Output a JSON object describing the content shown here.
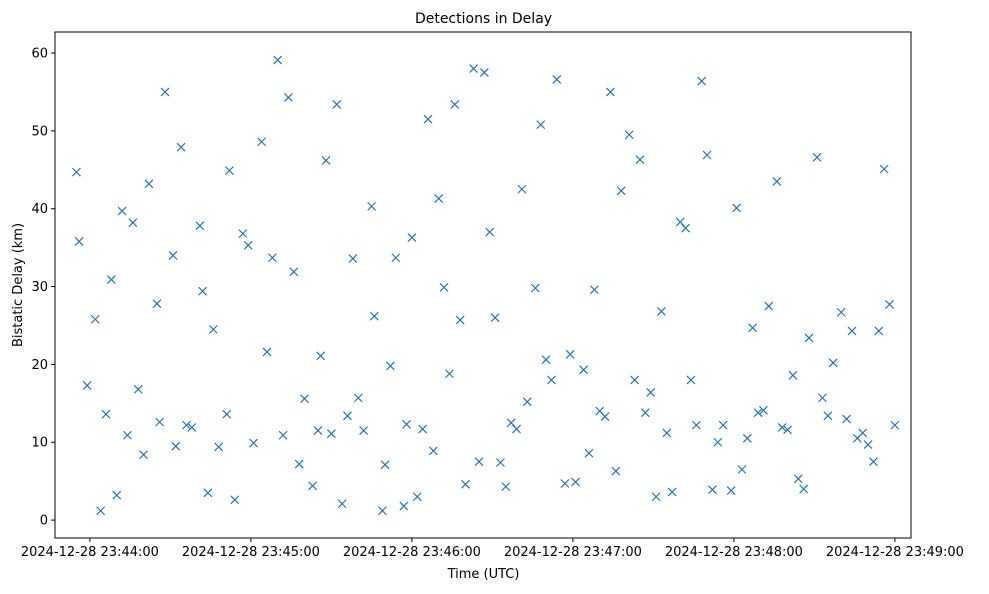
{
  "chart_data": {
    "type": "scatter",
    "title": "Detections in Delay",
    "xlabel": "Time (UTC)",
    "ylabel": "Bistatic Delay (km)",
    "marker": "x",
    "color": "#1f77b4",
    "grid": false,
    "x_axis": {
      "kind": "datetime",
      "range": [
        "2024-12-28 23:43:47",
        "2024-12-28 23:49:06"
      ],
      "ticks": [
        {
          "value": "2024-12-28 23:44:00",
          "label": "2024-12-28 23:44:00"
        },
        {
          "value": "2024-12-28 23:45:00",
          "label": "2024-12-28 23:45:00"
        },
        {
          "value": "2024-12-28 23:46:00",
          "label": "2024-12-28 23:46:00"
        },
        {
          "value": "2024-12-28 23:47:00",
          "label": "2024-12-28 23:47:00"
        },
        {
          "value": "2024-12-28 23:48:00",
          "label": "2024-12-28 23:48:00"
        },
        {
          "value": "2024-12-28 23:49:00",
          "label": "2024-12-28 23:49:00"
        }
      ]
    },
    "y_axis": {
      "range": [
        -2.3,
        62.7
      ],
      "ticks": [
        {
          "value": 0,
          "label": "0"
        },
        {
          "value": 10,
          "label": "10"
        },
        {
          "value": 20,
          "label": "20"
        },
        {
          "value": 30,
          "label": "30"
        },
        {
          "value": 40,
          "label": "40"
        },
        {
          "value": 50,
          "label": "50"
        },
        {
          "value": 60,
          "label": "60"
        }
      ]
    },
    "series": [
      {
        "points": [
          [
            "23:43:55",
            44.7
          ],
          [
            "23:43:56",
            35.8
          ],
          [
            "23:43:59",
            17.3
          ],
          [
            "23:44:02",
            25.8
          ],
          [
            "23:44:04",
            1.2
          ],
          [
            "23:44:06",
            13.6
          ],
          [
            "23:44:08",
            30.9
          ],
          [
            "23:44:10",
            3.2
          ],
          [
            "23:44:12",
            39.7
          ],
          [
            "23:44:14",
            10.9
          ],
          [
            "23:44:16",
            38.2
          ],
          [
            "23:44:18",
            16.8
          ],
          [
            "23:44:20",
            8.4
          ],
          [
            "23:44:22",
            43.2
          ],
          [
            "23:44:25",
            27.8
          ],
          [
            "23:44:26",
            12.6
          ],
          [
            "23:44:28",
            55.0
          ],
          [
            "23:44:31",
            34.0
          ],
          [
            "23:44:32",
            9.5
          ],
          [
            "23:44:34",
            47.9
          ],
          [
            "23:44:36",
            12.2
          ],
          [
            "23:44:38",
            11.9
          ],
          [
            "23:44:41",
            37.8
          ],
          [
            "23:44:42",
            29.4
          ],
          [
            "23:44:44",
            3.5
          ],
          [
            "23:44:46",
            24.5
          ],
          [
            "23:44:48",
            9.4
          ],
          [
            "23:44:51",
            13.6
          ],
          [
            "23:44:52",
            44.9
          ],
          [
            "23:44:54",
            2.6
          ],
          [
            "23:44:57",
            36.8
          ],
          [
            "23:44:59",
            35.3
          ],
          [
            "23:45:01",
            9.9
          ],
          [
            "23:45:04",
            48.6
          ],
          [
            "23:45:06",
            21.6
          ],
          [
            "23:45:08",
            33.7
          ],
          [
            "23:45:10",
            59.1
          ],
          [
            "23:45:12",
            10.9
          ],
          [
            "23:45:14",
            54.3
          ],
          [
            "23:45:16",
            31.9
          ],
          [
            "23:45:18",
            7.2
          ],
          [
            "23:45:20",
            15.6
          ],
          [
            "23:45:23",
            4.4
          ],
          [
            "23:45:25",
            11.5
          ],
          [
            "23:45:26",
            21.1
          ],
          [
            "23:45:28",
            46.2
          ],
          [
            "23:45:30",
            11.1
          ],
          [
            "23:45:32",
            53.4
          ],
          [
            "23:45:34",
            2.1
          ],
          [
            "23:45:36",
            13.4
          ],
          [
            "23:45:38",
            33.6
          ],
          [
            "23:45:40",
            15.7
          ],
          [
            "23:45:42",
            11.5
          ],
          [
            "23:45:45",
            40.3
          ],
          [
            "23:45:46",
            26.2
          ],
          [
            "23:45:49",
            1.2
          ],
          [
            "23:45:50",
            7.1
          ],
          [
            "23:45:52",
            19.8
          ],
          [
            "23:45:54",
            33.7
          ],
          [
            "23:45:57",
            1.8
          ],
          [
            "23:45:58",
            12.3
          ],
          [
            "23:46:00",
            36.3
          ],
          [
            "23:46:02",
            3.0
          ],
          [
            "23:46:04",
            11.7
          ],
          [
            "23:46:06",
            51.5
          ],
          [
            "23:46:08",
            8.9
          ],
          [
            "23:46:10",
            41.3
          ],
          [
            "23:46:12",
            29.9
          ],
          [
            "23:46:14",
            18.8
          ],
          [
            "23:46:16",
            53.4
          ],
          [
            "23:46:18",
            25.7
          ],
          [
            "23:46:20",
            4.6
          ],
          [
            "23:46:23",
            58.0
          ],
          [
            "23:46:25",
            7.5
          ],
          [
            "23:46:27",
            57.5
          ],
          [
            "23:46:29",
            37.0
          ],
          [
            "23:46:31",
            26.0
          ],
          [
            "23:46:33",
            7.4
          ],
          [
            "23:46:35",
            4.3
          ],
          [
            "23:46:37",
            12.5
          ],
          [
            "23:46:39",
            11.7
          ],
          [
            "23:46:41",
            42.5
          ],
          [
            "23:46:43",
            15.2
          ],
          [
            "23:46:46",
            29.8
          ],
          [
            "23:46:48",
            50.8
          ],
          [
            "23:46:50",
            20.6
          ],
          [
            "23:46:52",
            18.0
          ],
          [
            "23:46:54",
            56.6
          ],
          [
            "23:46:57",
            4.7
          ],
          [
            "23:46:59",
            21.3
          ],
          [
            "23:47:01",
            4.9
          ],
          [
            "23:47:04",
            19.3
          ],
          [
            "23:47:06",
            8.6
          ],
          [
            "23:47:08",
            29.6
          ],
          [
            "23:47:10",
            14.0
          ],
          [
            "23:47:12",
            13.3
          ],
          [
            "23:47:14",
            55.0
          ],
          [
            "23:47:16",
            6.3
          ],
          [
            "23:47:18",
            42.3
          ],
          [
            "23:47:21",
            49.5
          ],
          [
            "23:47:23",
            18.0
          ],
          [
            "23:47:25",
            46.3
          ],
          [
            "23:47:27",
            13.8
          ],
          [
            "23:47:29",
            16.4
          ],
          [
            "23:47:31",
            3.0
          ],
          [
            "23:47:33",
            26.8
          ],
          [
            "23:47:35",
            11.2
          ],
          [
            "23:47:37",
            3.6
          ],
          [
            "23:47:40",
            38.3
          ],
          [
            "23:47:42",
            37.5
          ],
          [
            "23:47:44",
            18.0
          ],
          [
            "23:47:46",
            12.2
          ],
          [
            "23:47:48",
            56.4
          ],
          [
            "23:47:50",
            46.9
          ],
          [
            "23:47:52",
            3.9
          ],
          [
            "23:47:54",
            10.0
          ],
          [
            "23:47:56",
            12.2
          ],
          [
            "23:47:59",
            3.8
          ],
          [
            "23:48:01",
            40.1
          ],
          [
            "23:48:03",
            6.5
          ],
          [
            "23:48:05",
            10.5
          ],
          [
            "23:48:07",
            24.7
          ],
          [
            "23:48:09",
            13.8
          ],
          [
            "23:48:11",
            14.1
          ],
          [
            "23:48:13",
            27.5
          ],
          [
            "23:48:16",
            43.5
          ],
          [
            "23:48:18",
            11.9
          ],
          [
            "23:48:20",
            11.6
          ],
          [
            "23:48:22",
            18.6
          ],
          [
            "23:48:24",
            5.3
          ],
          [
            "23:48:26",
            4.0
          ],
          [
            "23:48:28",
            23.4
          ],
          [
            "23:48:31",
            46.6
          ],
          [
            "23:48:33",
            15.7
          ],
          [
            "23:48:35",
            13.4
          ],
          [
            "23:48:37",
            20.2
          ],
          [
            "23:48:40",
            26.7
          ],
          [
            "23:48:42",
            13.0
          ],
          [
            "23:48:44",
            24.3
          ],
          [
            "23:48:46",
            10.5
          ],
          [
            "23:48:48",
            11.2
          ],
          [
            "23:48:50",
            9.7
          ],
          [
            "23:48:52",
            7.5
          ],
          [
            "23:48:54",
            24.3
          ],
          [
            "23:48:56",
            45.1
          ],
          [
            "23:48:58",
            27.7
          ],
          [
            "23:49:00",
            12.2
          ]
        ]
      }
    ]
  }
}
